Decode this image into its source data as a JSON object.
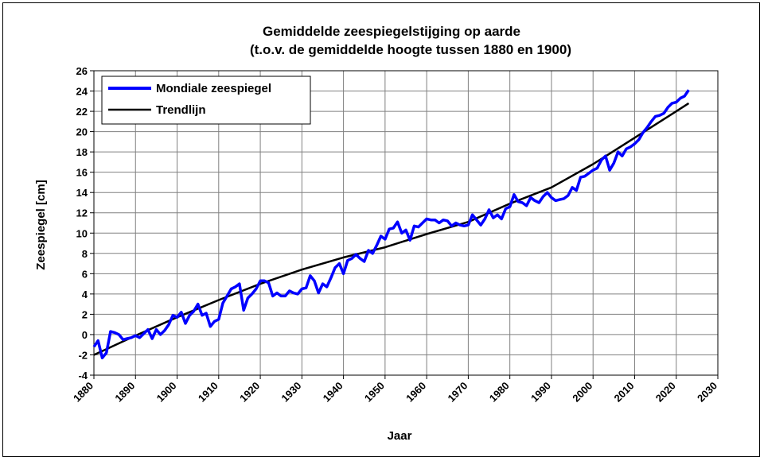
{
  "chart_data": {
    "type": "line",
    "title": "Gemiddelde  zeespiegelstijging  op aarde",
    "subtitle": "(t.o.v. de gemiddelde  hoogte tussen 1880 en 1900)",
    "xlabel": "Jaar",
    "ylabel": "Zeespiegel  [cm]",
    "xlim": [
      1880,
      2030
    ],
    "ylim": [
      -4,
      26
    ],
    "x_ticks": [
      "1880",
      "1890",
      "1900",
      "1910",
      "1920",
      "1930",
      "1940",
      "1950",
      "1960",
      "1970",
      "1980",
      "1990",
      "2000",
      "2010",
      "2020",
      "2030"
    ],
    "y_ticks": [
      "-4",
      "-2",
      "0",
      "2",
      "4",
      "6",
      "8",
      "10",
      "12",
      "14",
      "16",
      "18",
      "20",
      "22",
      "24",
      "26"
    ],
    "grid": true,
    "legend_position": "top-left",
    "colors": {
      "series": "#0000FF",
      "trend": "#000000"
    },
    "series": [
      {
        "name": "Mondiale zeespiegel",
        "x": [
          1880,
          1881,
          1882,
          1883,
          1884,
          1885,
          1886,
          1887,
          1888,
          1889,
          1890,
          1891,
          1892,
          1893,
          1894,
          1895,
          1896,
          1897,
          1898,
          1899,
          1900,
          1901,
          1902,
          1903,
          1904,
          1905,
          1906,
          1907,
          1908,
          1909,
          1910,
          1911,
          1912,
          1913,
          1914,
          1915,
          1916,
          1917,
          1918,
          1919,
          1920,
          1921,
          1922,
          1923,
          1924,
          1925,
          1926,
          1927,
          1928,
          1929,
          1930,
          1931,
          1932,
          1933,
          1934,
          1935,
          1936,
          1937,
          1938,
          1939,
          1940,
          1941,
          1942,
          1943,
          1944,
          1945,
          1946,
          1947,
          1948,
          1949,
          1950,
          1951,
          1952,
          1953,
          1954,
          1955,
          1956,
          1957,
          1958,
          1959,
          1960,
          1961,
          1962,
          1963,
          1964,
          1965,
          1966,
          1967,
          1968,
          1969,
          1970,
          1971,
          1972,
          1973,
          1974,
          1975,
          1976,
          1977,
          1978,
          1979,
          1980,
          1981,
          1982,
          1983,
          1984,
          1985,
          1986,
          1987,
          1988,
          1989,
          1990,
          1991,
          1992,
          1993,
          1994,
          1995,
          1996,
          1997,
          1998,
          1999,
          2000,
          2001,
          2002,
          2003,
          2004,
          2005,
          2006,
          2007,
          2008,
          2009,
          2010,
          2011,
          2012,
          2013,
          2014,
          2015,
          2016,
          2017,
          2018,
          2019,
          2020,
          2021,
          2022,
          2023
        ],
        "y": [
          -1.2,
          -0.6,
          -2.3,
          -1.8,
          0.3,
          0.2,
          0.0,
          -0.5,
          -0.4,
          -0.3,
          -0.1,
          -0.3,
          0.1,
          0.5,
          -0.4,
          0.5,
          0.0,
          0.4,
          1.0,
          1.9,
          1.7,
          2.2,
          1.1,
          1.9,
          2.3,
          3.0,
          1.9,
          2.1,
          0.8,
          1.3,
          1.5,
          3.1,
          3.8,
          4.5,
          4.7,
          5.0,
          2.4,
          3.6,
          4.0,
          4.5,
          5.3,
          5.3,
          5.1,
          3.8,
          4.1,
          3.8,
          3.8,
          4.3,
          4.1,
          4.0,
          4.5,
          4.6,
          5.8,
          5.3,
          4.1,
          5.0,
          4.7,
          5.6,
          6.6,
          7.0,
          6.0,
          7.3,
          7.5,
          7.9,
          7.5,
          7.2,
          8.3,
          8.0,
          8.8,
          9.7,
          9.4,
          10.4,
          10.5,
          11.1,
          10.0,
          10.3,
          9.3,
          10.7,
          10.6,
          11.0,
          11.4,
          11.3,
          11.3,
          11.0,
          11.3,
          11.2,
          10.7,
          11.0,
          10.8,
          10.7,
          10.8,
          11.8,
          11.3,
          10.8,
          11.4,
          12.3,
          11.5,
          11.8,
          11.4,
          12.4,
          12.6,
          13.8,
          13.1,
          13.0,
          12.7,
          13.5,
          13.2,
          13.0,
          13.6,
          14.0,
          13.5,
          13.2,
          13.3,
          13.4,
          13.7,
          14.5,
          14.2,
          15.5,
          15.6,
          15.9,
          16.2,
          16.4,
          17.2,
          17.6,
          16.2,
          16.9,
          18.0,
          17.6,
          18.3,
          18.5,
          18.8,
          19.2,
          19.9,
          20.4,
          21.0,
          21.5,
          21.6,
          21.8,
          22.4,
          22.8,
          22.9,
          23.3,
          23.5,
          24.1
        ]
      },
      {
        "name": "Trendlijn",
        "x": [
          1880,
          1890,
          1900,
          1910,
          1920,
          1930,
          1940,
          1950,
          1960,
          1970,
          1980,
          1990,
          2000,
          2010,
          2020,
          2023
        ],
        "y": [
          -2.0,
          -0.1,
          1.7,
          3.4,
          5.0,
          6.4,
          7.6,
          8.6,
          9.9,
          11.1,
          12.9,
          14.5,
          16.8,
          19.4,
          22.0,
          22.8
        ]
      }
    ]
  }
}
